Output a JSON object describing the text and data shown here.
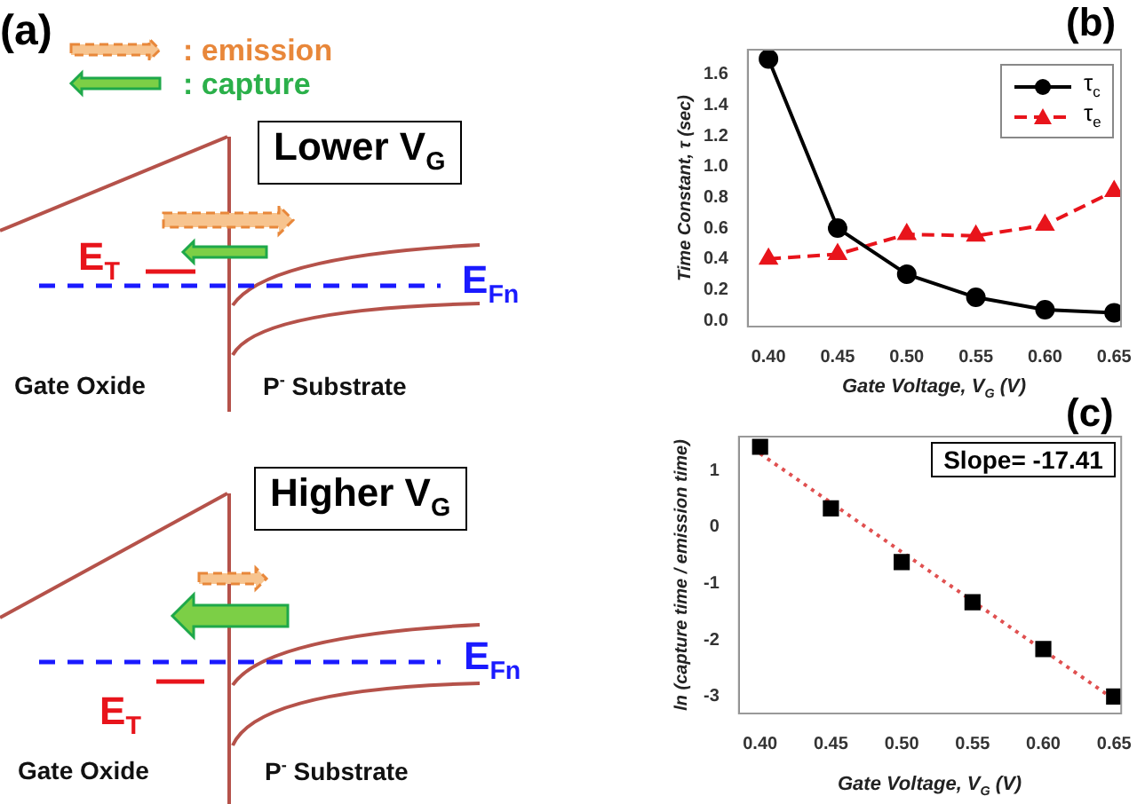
{
  "chart_data": [
    {
      "type": "other",
      "annotations": [
        "(a)",
        ": emission",
        ": capture",
        "Lower V$_{G}$",
        "E$_{T}$",
        "E$_{Fn}$",
        "Gate Oxide",
        "P$^{-}$ Substrate",
        "Higher V$_{G}$",
        "E$_{T}$",
        "E$_{Fn}$",
        "Gate Oxide",
        "P$^{-}$ Substrate"
      ]
    },
    {
      "type": "line",
      "title": "(b)",
      "xlabel": "Gate Voltage, V$_{G}$ (V)",
      "ylabel": "Time Constant, τ (sec)",
      "x": [
        0.4,
        0.45,
        0.5,
        0.55,
        0.6,
        0.65
      ],
      "xlim": [
        0.385,
        0.655
      ],
      "xticks": [
        {
          "value": 0.4,
          "label": "0.40"
        },
        {
          "value": 0.45,
          "label": "0.45"
        },
        {
          "value": 0.5,
          "label": "0.50"
        },
        {
          "value": 0.55,
          "label": "0.55"
        },
        {
          "value": 0.6,
          "label": "0.60"
        },
        {
          "value": 0.65,
          "label": "0.65"
        }
      ],
      "ylim": [
        -0.04,
        1.76
      ],
      "yticks": [
        {
          "value": 0,
          "label": "0.0"
        },
        {
          "value": 0.2,
          "label": "0.2"
        },
        {
          "value": 0.4,
          "label": "0.4"
        },
        {
          "value": 0.6,
          "label": "0.6"
        },
        {
          "value": 0.8,
          "label": "0.8"
        },
        {
          "value": 1,
          "label": "1.0"
        },
        {
          "value": 1.2,
          "label": "1.2"
        },
        {
          "value": 1.4,
          "label": "1.4"
        },
        {
          "value": 1.6,
          "label": "1.6"
        }
      ],
      "grid": false,
      "legend": "top right",
      "series": [
        {
          "name": "τ$_{c}$",
          "color": "#000000",
          "marker": "circle",
          "line_style": "solid",
          "values": [
            1.7,
            0.6,
            0.3,
            0.15,
            0.07,
            0.05
          ]
        },
        {
          "name": "τ$_{e}$",
          "color": "#e8141b",
          "marker": "triangle",
          "line_style": "dashed",
          "values": [
            0.4,
            0.43,
            0.56,
            0.55,
            0.62,
            0.84
          ]
        }
      ]
    },
    {
      "type": "scatter",
      "title": "(c)",
      "xlabel": "Gate Voltage, V$_{G}$ (V)",
      "ylabel": "ln (capture time / emission time)",
      "xlim": [
        0.385,
        0.655
      ],
      "xticks": [
        {
          "value": 0.4,
          "label": "0.40"
        },
        {
          "value": 0.45,
          "label": "0.45"
        },
        {
          "value": 0.5,
          "label": "0.50"
        },
        {
          "value": 0.55,
          "label": "0.55"
        },
        {
          "value": 0.6,
          "label": "0.60"
        },
        {
          "value": 0.65,
          "label": "0.65"
        }
      ],
      "ylim": [
        -3.3,
        1.6
      ],
      "yticks": [
        -3,
        -2,
        -1,
        0,
        1
      ],
      "grid": false,
      "annotations": [
        "Slope= -17.41"
      ],
      "series": [
        {
          "color": "#000000",
          "marker": "square",
          "x": [
            0.4,
            0.45,
            0.5,
            0.55,
            0.6,
            0.65
          ],
          "values": [
            1.42,
            0.33,
            -0.62,
            -1.33,
            -2.16,
            -3.0
          ]
        },
        {
          "type": "line",
          "color": "#e05050",
          "marker": "none",
          "line_style": "dotted",
          "x": [
            0.4,
            0.65
          ],
          "values": [
            1.3,
            -3.05
          ]
        }
      ]
    }
  ]
}
